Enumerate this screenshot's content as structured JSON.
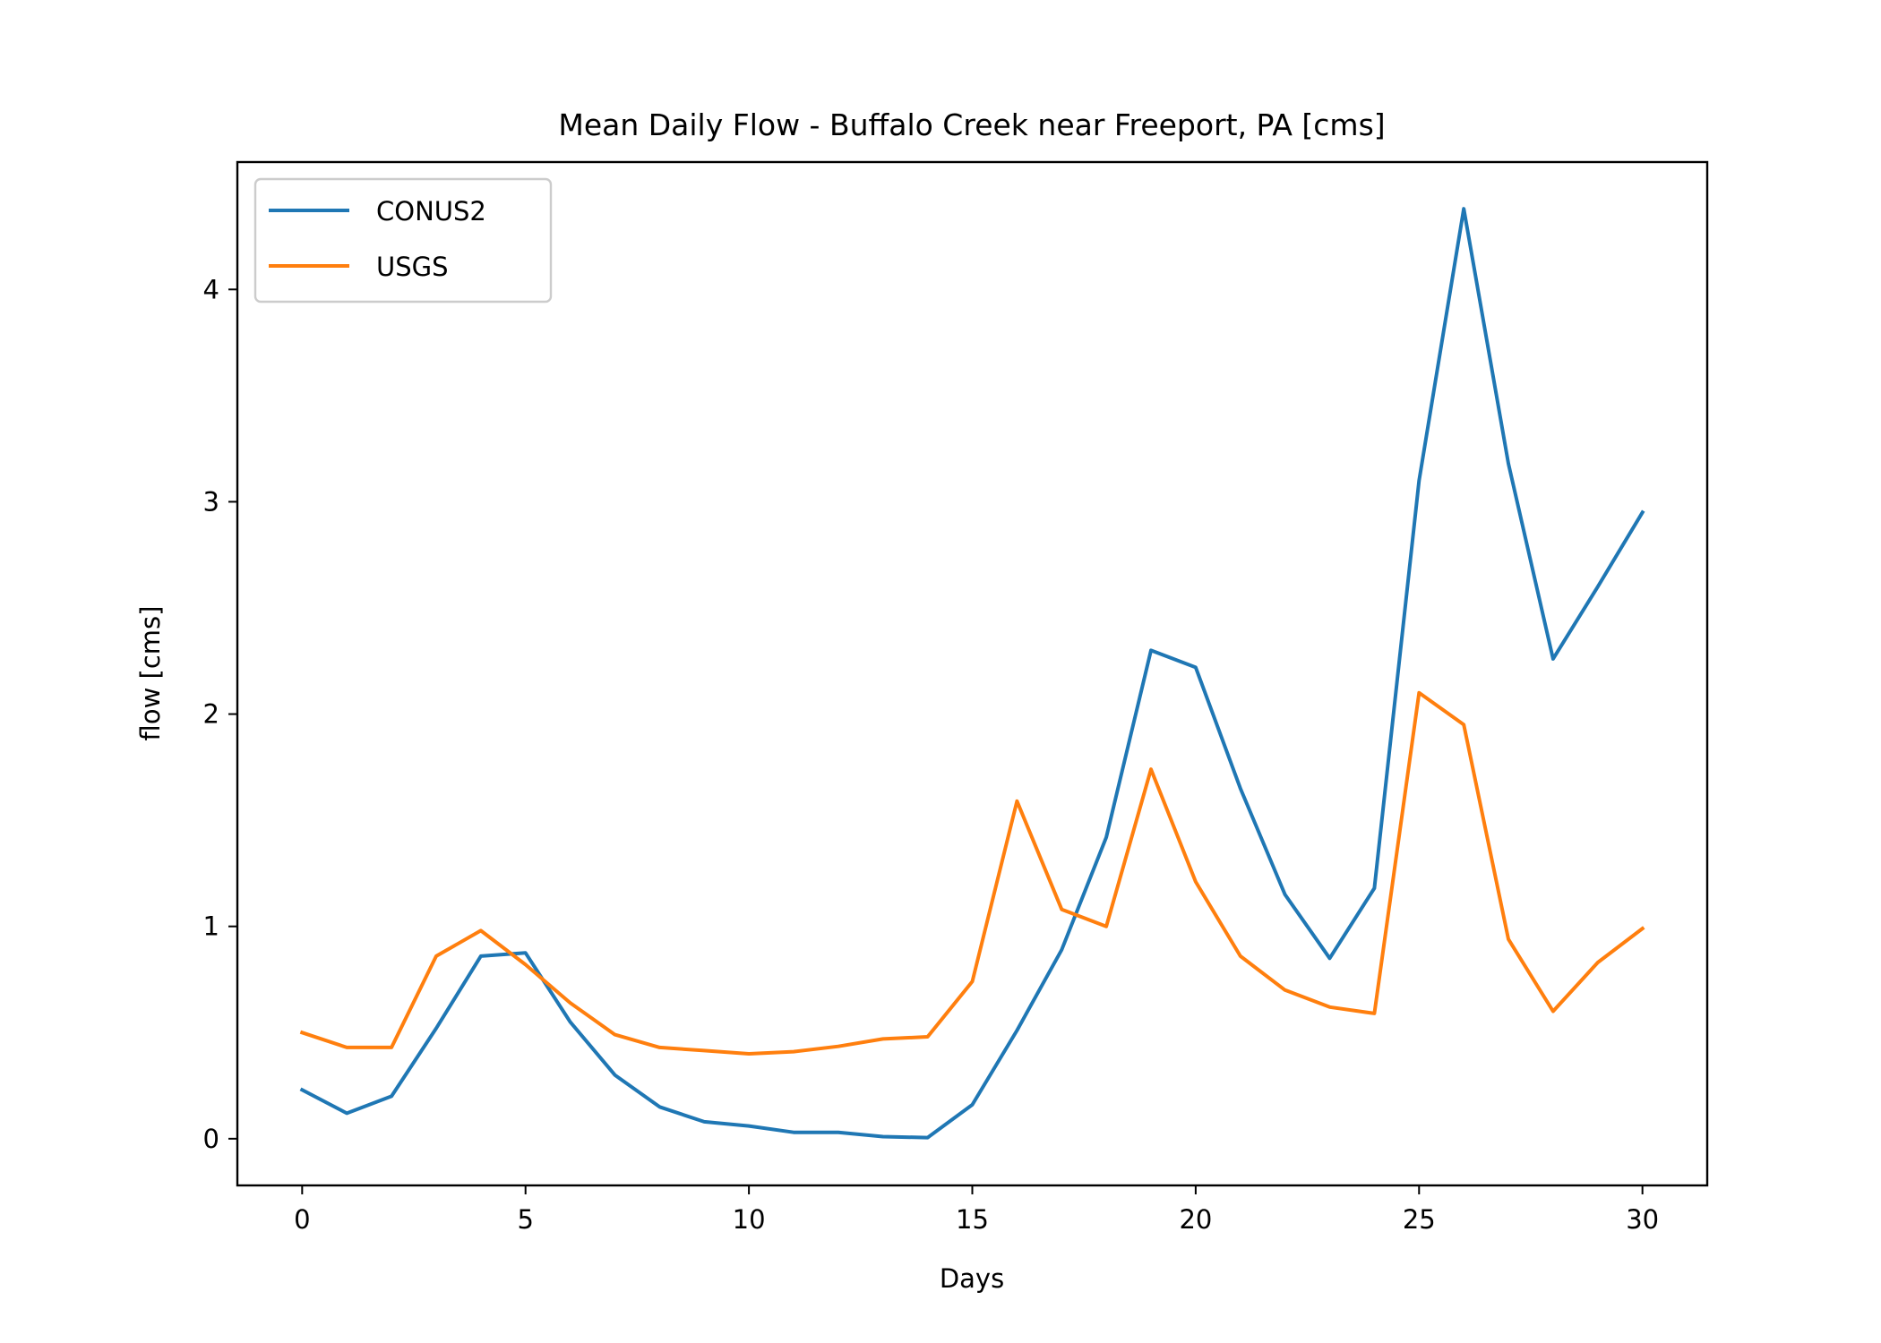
{
  "chart_data": {
    "type": "line",
    "title": "Mean Daily Flow - Buffalo Creek near Freeport, PA [cms]",
    "xlabel": "Days",
    "ylabel": "flow [cms]",
    "xlim": [
      -1.45,
      31.45
    ],
    "ylim": [
      -0.22,
      4.6
    ],
    "xticks": [
      0,
      5,
      10,
      15,
      20,
      25,
      30
    ],
    "yticks": [
      0,
      1,
      2,
      3,
      4
    ],
    "grid": false,
    "legend_position": "top-left",
    "x": [
      0,
      1,
      2,
      3,
      4,
      5,
      6,
      7,
      8,
      9,
      10,
      11,
      12,
      13,
      14,
      15,
      16,
      17,
      18,
      19,
      20,
      21,
      22,
      23,
      24,
      25,
      26,
      27,
      28,
      29,
      30
    ],
    "series": [
      {
        "name": "CONUS2",
        "color": "#1f77b4",
        "values": [
          0.23,
          0.12,
          0.2,
          0.52,
          0.86,
          0.875,
          0.55,
          0.3,
          0.15,
          0.08,
          0.06,
          0.03,
          0.03,
          0.01,
          0.005,
          0.16,
          0.51,
          0.89,
          1.42,
          2.3,
          2.22,
          1.65,
          1.15,
          0.85,
          1.18,
          3.1,
          4.38,
          3.18,
          2.26,
          2.6,
          2.95
        ]
      },
      {
        "name": "USGS",
        "color": "#ff7f0e",
        "values": [
          0.5,
          0.43,
          0.43,
          0.86,
          0.98,
          0.82,
          0.64,
          0.49,
          0.43,
          0.415,
          0.4,
          0.41,
          0.435,
          0.47,
          0.48,
          0.74,
          1.59,
          1.08,
          1.0,
          1.74,
          1.21,
          0.86,
          0.7,
          0.62,
          0.59,
          2.1,
          1.95,
          0.94,
          0.6,
          0.83,
          0.99
        ]
      }
    ]
  }
}
